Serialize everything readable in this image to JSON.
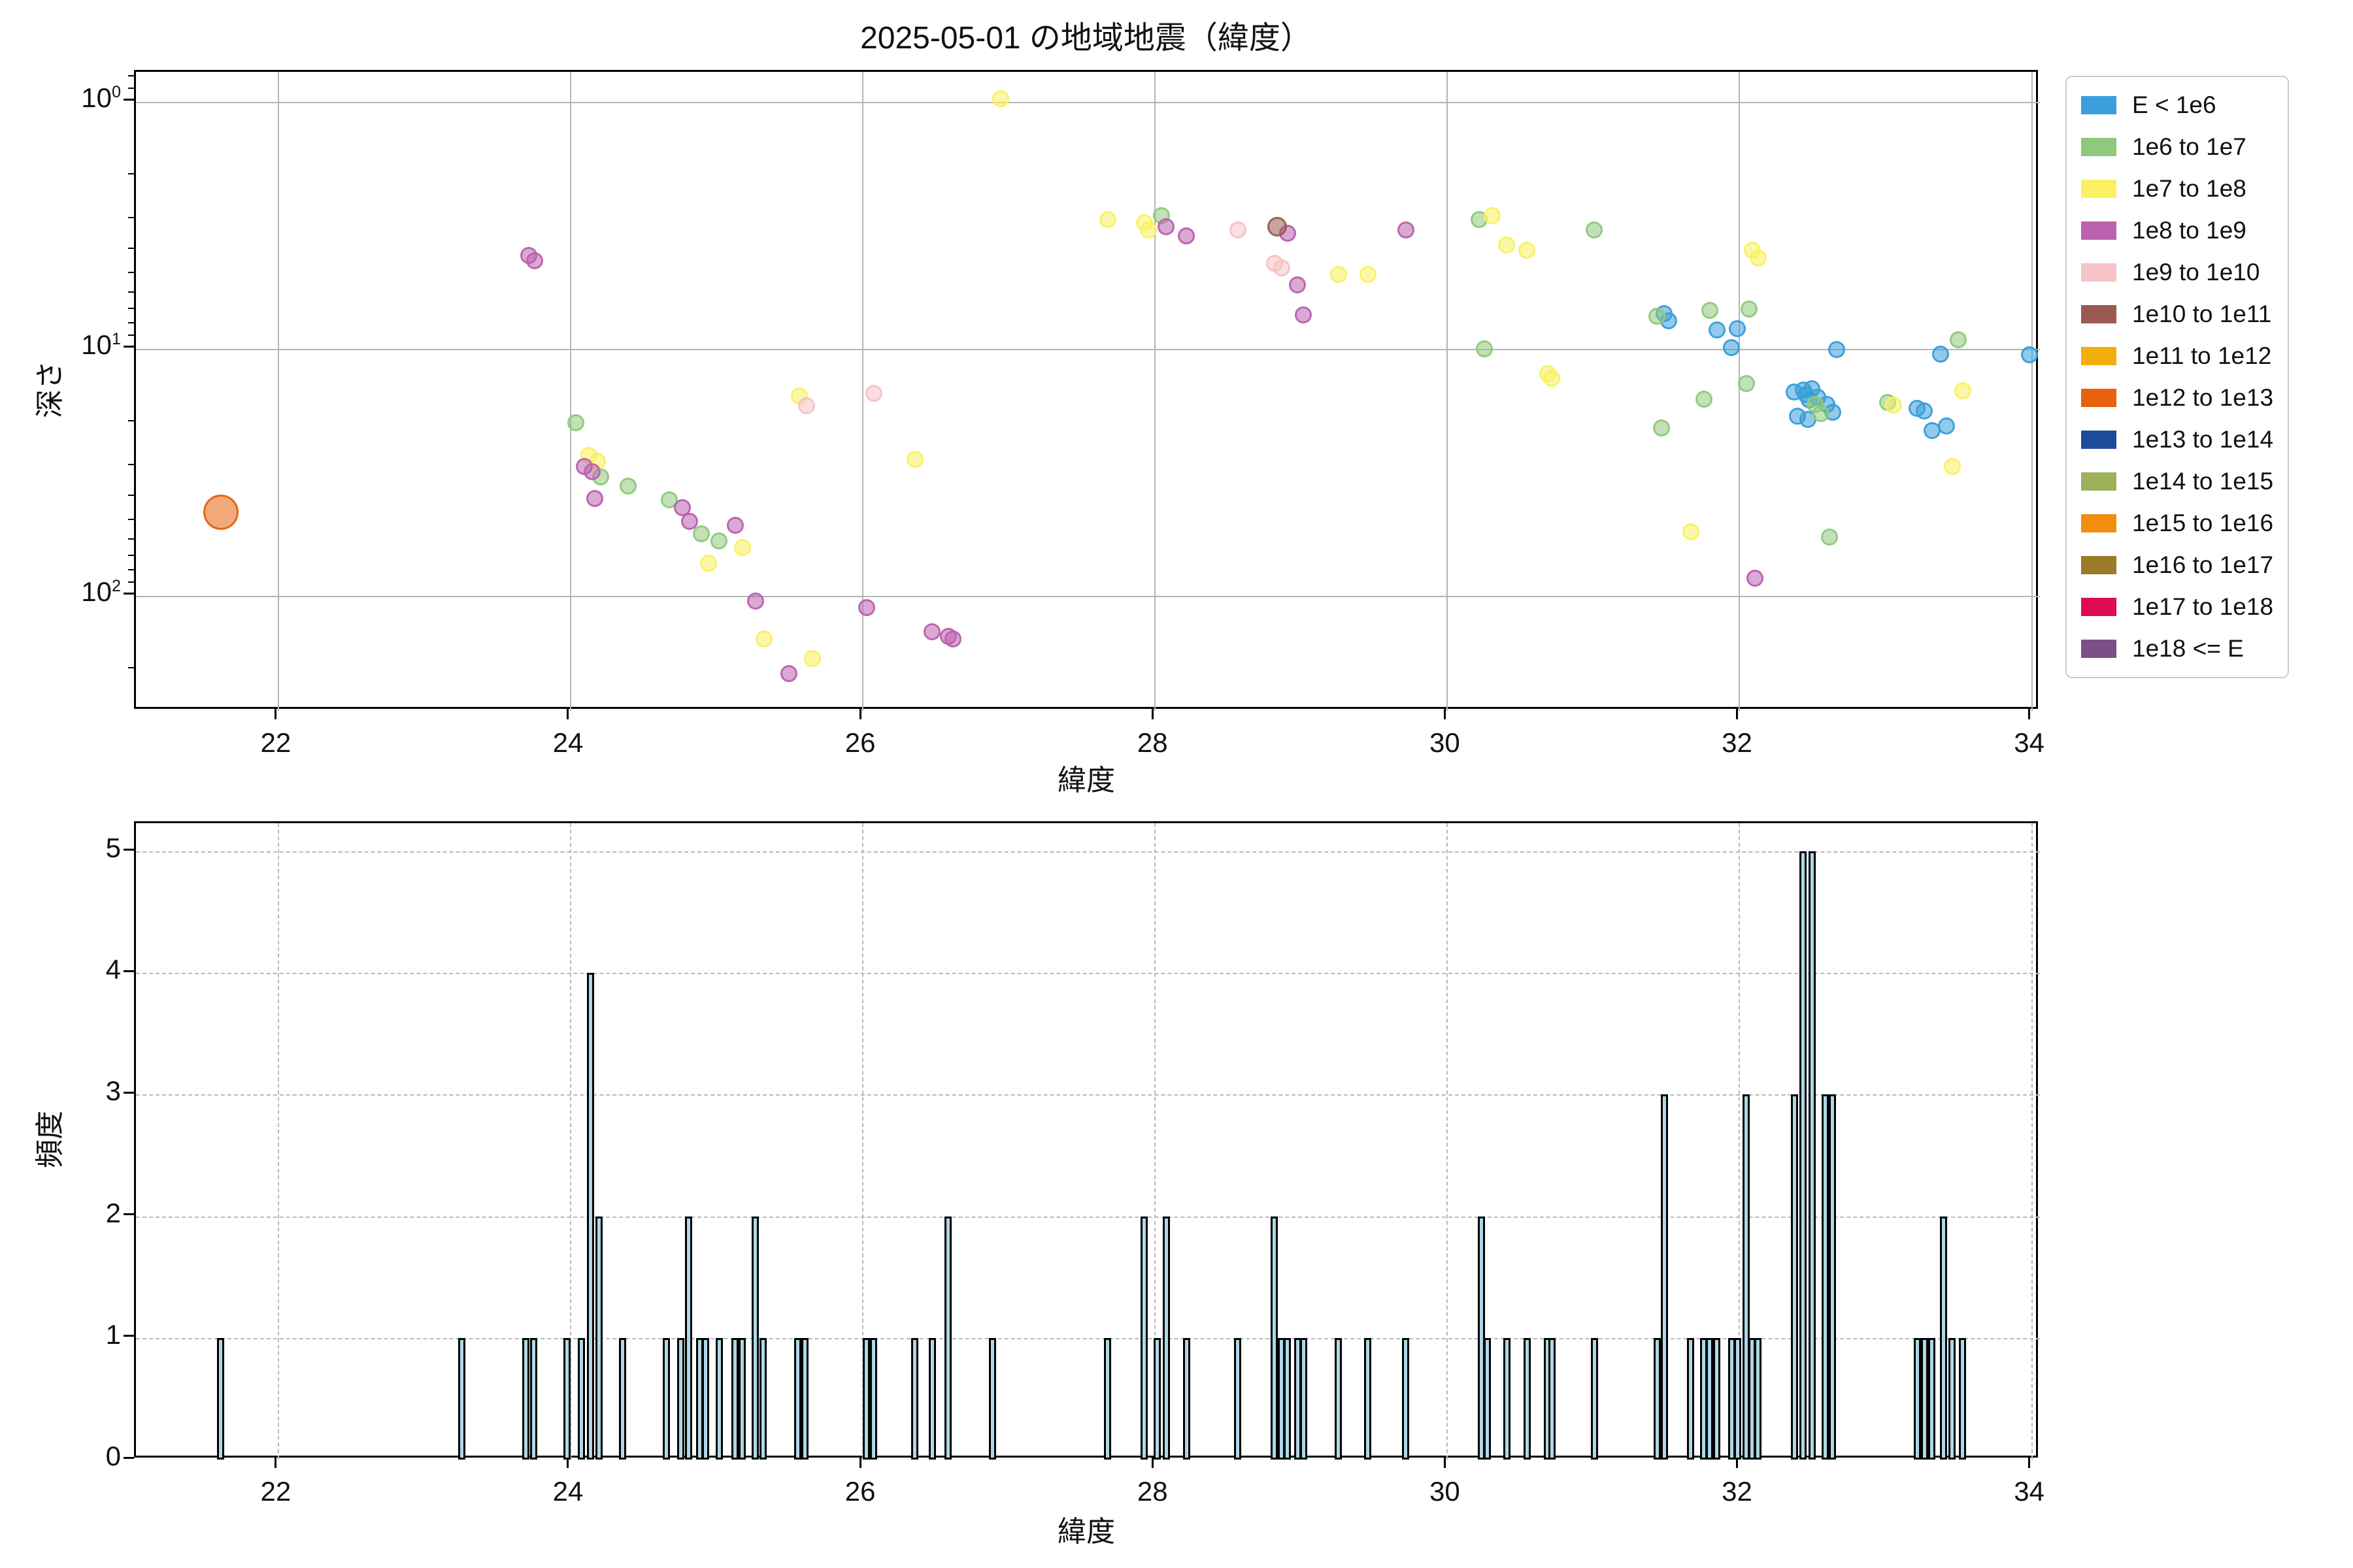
{
  "title": "2025-05-01 の地域地震（緯度）",
  "scatter_plot": {
    "xlabel": "緯度",
    "ylabel": "深さ",
    "x_tick_labels": [
      "22",
      "24",
      "26",
      "28",
      "30",
      "32",
      "34"
    ],
    "y_tick_labels": [
      "10^0",
      "10^1",
      "10^2"
    ]
  },
  "histogram_plot": {
    "xlabel": "緯度",
    "ylabel": "頻度",
    "x_tick_labels": [
      "22",
      "24",
      "26",
      "28",
      "30",
      "32",
      "34"
    ],
    "y_tick_labels": [
      "0",
      "1",
      "2",
      "3",
      "4",
      "5"
    ]
  },
  "legend": {
    "entries": [
      {
        "label": "E < 1e6",
        "color": "#3a9fdb"
      },
      {
        "label": "1e6 to 1e7",
        "color": "#8fc97c"
      },
      {
        "label": "1e7 to 1e8",
        "color": "#f9f161"
      },
      {
        "label": "1e8 to 1e9",
        "color": "#bb62af"
      },
      {
        "label": "1e9 to 1e10",
        "color": "#f6c3c7"
      },
      {
        "label": "1e10 to 1e11",
        "color": "#9b5b52"
      },
      {
        "label": "1e11 to 1e12",
        "color": "#f1ae0c"
      },
      {
        "label": "1e12 to 1e13",
        "color": "#e8620d"
      },
      {
        "label": "1e13 to 1e14",
        "color": "#1d4b9b"
      },
      {
        "label": "1e14 to 1e15",
        "color": "#9db05a"
      },
      {
        "label": "1e15 to 1e16",
        "color": "#f28d0e"
      },
      {
        "label": "1e16 to 1e17",
        "color": "#9c7b28"
      },
      {
        "label": "1e17 to 1e18",
        "color": "#de0d51"
      },
      {
        "label": "1e18 <= E",
        "color": "#7c4f88"
      }
    ]
  },
  "chart_data": [
    {
      "type": "scatter",
      "title": "2025-05-01 の地域地震（緯度）",
      "xlabel": "緯度",
      "ylabel": "深さ",
      "x_range": [
        21.03,
        34.06
      ],
      "x_ticks": [
        22,
        24,
        26,
        28,
        30,
        32,
        34
      ],
      "y_scale": "log",
      "y_inverted": true,
      "y_range_depth_km": [
        0.76,
        292
      ],
      "y_tick_exponents": [
        0,
        1,
        2
      ],
      "grid": true,
      "legend_position": "outside-right",
      "series": [
        {
          "name": "E < 1e6",
          "color": "#3a9fdb",
          "radius": 13,
          "points": [
            [
              31.49,
              7.2
            ],
            [
              31.52,
              7.7
            ],
            [
              31.85,
              8.4
            ],
            [
              31.95,
              9.9
            ],
            [
              31.99,
              8.3
            ],
            [
              32.38,
              15.0
            ],
            [
              32.4,
              18.8
            ],
            [
              32.44,
              14.7
            ],
            [
              32.46,
              15.3
            ],
            [
              32.47,
              19.4
            ],
            [
              32.48,
              16.1
            ],
            [
              32.5,
              14.5
            ],
            [
              32.54,
              15.7
            ],
            [
              32.6,
              16.8
            ],
            [
              32.64,
              18.1
            ],
            [
              32.67,
              10.1
            ],
            [
              33.22,
              17.4
            ],
            [
              33.27,
              17.9
            ],
            [
              33.32,
              21.4
            ],
            [
              33.38,
              10.5
            ],
            [
              33.42,
              20.5
            ],
            [
              33.99,
              10.6
            ]
          ]
        },
        {
          "name": "1e6 to 1e7",
          "color": "#8fc97c",
          "radius": 13,
          "points": [
            [
              24.04,
              20
            ],
            [
              24.21,
              33
            ],
            [
              24.4,
              36
            ],
            [
              24.68,
              41
            ],
            [
              24.9,
              56
            ],
            [
              25.02,
              60
            ],
            [
              28.05,
              2.9
            ],
            [
              30.22,
              3.0
            ],
            [
              30.26,
              10.0
            ],
            [
              31.01,
              3.3
            ],
            [
              31.44,
              7.4
            ],
            [
              31.47,
              21
            ],
            [
              31.76,
              16
            ],
            [
              31.8,
              7.0
            ],
            [
              32.05,
              13.8
            ],
            [
              32.07,
              6.9
            ],
            [
              32.52,
              16.8
            ],
            [
              32.56,
              18.3
            ],
            [
              32.62,
              58
            ],
            [
              33.02,
              16.5
            ],
            [
              33.5,
              9.2
            ]
          ]
        },
        {
          "name": "1e7 to 1e8",
          "color": "#f9f161",
          "radius": 13,
          "points": [
            [
              24.13,
              27
            ],
            [
              24.19,
              28.5
            ],
            [
              24.95,
              74
            ],
            [
              25.18,
              64
            ],
            [
              25.33,
              150
            ],
            [
              25.57,
              15.5
            ],
            [
              25.66,
              180
            ],
            [
              26.36,
              28
            ],
            [
              26.95,
              0.97
            ],
            [
              27.68,
              3.0
            ],
            [
              27.93,
              3.1
            ],
            [
              27.96,
              3.3
            ],
            [
              29.26,
              5.0
            ],
            [
              29.46,
              5.0
            ],
            [
              30.31,
              2.9
            ],
            [
              30.41,
              3.8
            ],
            [
              30.55,
              4.0
            ],
            [
              30.69,
              12.6
            ],
            [
              30.72,
              13.2
            ],
            [
              31.67,
              55
            ],
            [
              32.09,
              4.0
            ],
            [
              32.13,
              4.3
            ],
            [
              33.06,
              16.9
            ],
            [
              33.46,
              30
            ],
            [
              33.53,
              14.8
            ]
          ]
        },
        {
          "name": "1e8 to 1e9",
          "color": "#bb62af",
          "radius": 13,
          "points": [
            [
              23.72,
              4.2
            ],
            [
              23.76,
              4.4
            ],
            [
              24.1,
              30
            ],
            [
              24.15,
              31.5
            ],
            [
              24.17,
              40.5
            ],
            [
              24.77,
              44
            ],
            [
              24.82,
              50
            ],
            [
              25.13,
              52
            ],
            [
              25.27,
              105
            ],
            [
              25.5,
              207
            ],
            [
              26.03,
              112
            ],
            [
              26.48,
              140
            ],
            [
              26.59,
              146
            ],
            [
              26.62,
              150
            ],
            [
              28.08,
              3.2
            ],
            [
              28.22,
              3.5
            ],
            [
              28.91,
              3.4
            ],
            [
              28.98,
              5.5
            ],
            [
              29.02,
              7.3
            ],
            [
              29.72,
              3.3
            ],
            [
              32.11,
              85
            ]
          ]
        },
        {
          "name": "1e9 to 1e10",
          "color": "#f6c3c7",
          "radius": 13,
          "points": [
            [
              25.62,
              17
            ],
            [
              26.08,
              15.2
            ],
            [
              28.57,
              3.3
            ],
            [
              28.82,
              4.5
            ],
            [
              28.87,
              4.7
            ]
          ]
        },
        {
          "name": "1e10 to 1e11",
          "color": "#9b5b52",
          "radius": 15,
          "points": [
            [
              28.84,
              3.2
            ]
          ]
        },
        {
          "name": "1e12 to 1e13",
          "color": "#e8620d",
          "radius": 27,
          "points": [
            [
              21.61,
              46
            ]
          ]
        }
      ]
    },
    {
      "type": "bar",
      "xlabel": "緯度",
      "ylabel": "頻度",
      "x_range": [
        21.03,
        34.06
      ],
      "x_ticks": [
        22,
        24,
        26,
        28,
        30,
        32,
        34
      ],
      "y_range": [
        0,
        5.23
      ],
      "y_ticks": [
        0,
        1,
        2,
        3,
        4,
        5
      ],
      "grid": "dashed",
      "bar_color": "#add8e6",
      "bar_edge_color": "#000000",
      "bin_width_deg": 0.05,
      "bars": [
        [
          21.61,
          1
        ],
        [
          23.26,
          1
        ],
        [
          23.7,
          1
        ],
        [
          23.75,
          1
        ],
        [
          23.98,
          1
        ],
        [
          24.08,
          1
        ],
        [
          24.14,
          4
        ],
        [
          24.2,
          2
        ],
        [
          24.36,
          1
        ],
        [
          24.66,
          1
        ],
        [
          24.76,
          1
        ],
        [
          24.81,
          2
        ],
        [
          24.89,
          1
        ],
        [
          24.93,
          1
        ],
        [
          25.02,
          1
        ],
        [
          25.13,
          1
        ],
        [
          25.18,
          1
        ],
        [
          25.27,
          2
        ],
        [
          25.32,
          1
        ],
        [
          25.56,
          1
        ],
        [
          25.61,
          1
        ],
        [
          26.03,
          1
        ],
        [
          26.08,
          1
        ],
        [
          26.36,
          1
        ],
        [
          26.48,
          1
        ],
        [
          26.59,
          2
        ],
        [
          26.89,
          1
        ],
        [
          27.68,
          1
        ],
        [
          27.93,
          2
        ],
        [
          28.02,
          1
        ],
        [
          28.08,
          2
        ],
        [
          28.22,
          1
        ],
        [
          28.57,
          1
        ],
        [
          28.82,
          2
        ],
        [
          28.87,
          1
        ],
        [
          28.91,
          1
        ],
        [
          28.98,
          1
        ],
        [
          29.02,
          1
        ],
        [
          29.26,
          1
        ],
        [
          29.46,
          1
        ],
        [
          29.72,
          1
        ],
        [
          30.24,
          2
        ],
        [
          30.28,
          1
        ],
        [
          30.41,
          1
        ],
        [
          30.55,
          1
        ],
        [
          30.69,
          1
        ],
        [
          30.72,
          1
        ],
        [
          31.01,
          1
        ],
        [
          31.44,
          1
        ],
        [
          31.49,
          3
        ],
        [
          31.67,
          1
        ],
        [
          31.76,
          1
        ],
        [
          31.8,
          1
        ],
        [
          31.85,
          1
        ],
        [
          31.95,
          1
        ],
        [
          31.99,
          1
        ],
        [
          32.05,
          3
        ],
        [
          32.09,
          1
        ],
        [
          32.13,
          1
        ],
        [
          32.38,
          3
        ],
        [
          32.44,
          5
        ],
        [
          32.5,
          5
        ],
        [
          32.59,
          3
        ],
        [
          32.64,
          3
        ],
        [
          33.22,
          1
        ],
        [
          33.27,
          1
        ],
        [
          33.32,
          1
        ],
        [
          33.4,
          2
        ],
        [
          33.46,
          1
        ],
        [
          33.53,
          1
        ]
      ]
    }
  ]
}
